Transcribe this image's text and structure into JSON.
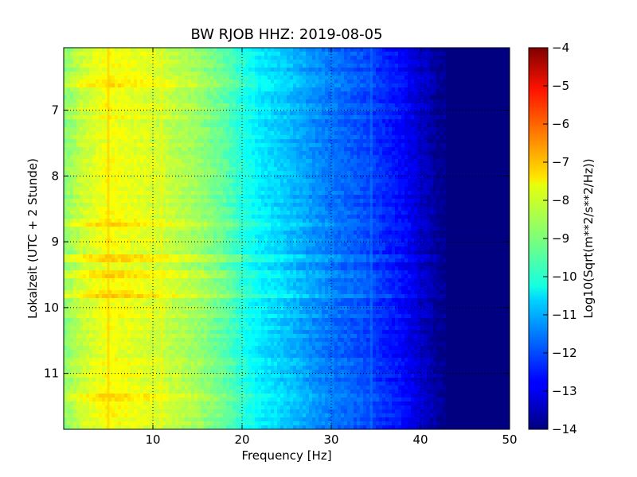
{
  "chart_data": {
    "type": "heatmap",
    "title": "BW RJOB HHZ: 2019-08-05",
    "xlabel": "Frequency [Hz]",
    "ylabel": "Lokalzeit (UTC + 2 Stunde)",
    "xlim": [
      0,
      50
    ],
    "ylim": [
      11.85,
      6.05
    ],
    "y_inverted": true,
    "x_ticks": [
      10,
      20,
      30,
      40,
      50
    ],
    "x_tick_labels": [
      "10",
      "20",
      "30",
      "40",
      "50"
    ],
    "y_ticks": [
      7,
      8,
      9,
      10,
      11
    ],
    "y_tick_labels": [
      "7",
      "8",
      "9",
      "10",
      "11"
    ],
    "grid": true,
    "colormap": "jet",
    "colorbar": {
      "label": "Log10(Sqrt(m**2/s**2/Hz))",
      "min": -14,
      "max": -4,
      "ticks": [
        -4,
        -5,
        -6,
        -7,
        -8,
        -9,
        -10,
        -11,
        -12,
        -13,
        -14
      ],
      "tick_labels": [
        "−4",
        "−5",
        "−6",
        "−7",
        "−8",
        "−9",
        "−10",
        "−11",
        "−12",
        "−13",
        "−14"
      ]
    },
    "spectrum_profile": {
      "frequency_hz": [
        0,
        2,
        5,
        10,
        15,
        18,
        20,
        22,
        25,
        28,
        30,
        33,
        35,
        38,
        40,
        42,
        45,
        50
      ],
      "log10_psd": [
        -8.9,
        -8.3,
        -7.8,
        -8.1,
        -8.7,
        -9.3,
        -9.9,
        -10.4,
        -10.8,
        -11.3,
        -11.6,
        -11.9,
        -12.2,
        -12.7,
        -13.2,
        -13.8,
        -14.0,
        -14.0
      ]
    },
    "high_noise_times": [
      6.6,
      8.72,
      9.25,
      9.5,
      9.8,
      11.35
    ],
    "spectral_lines_hz": [
      5.0,
      11.0,
      34.5
    ]
  }
}
